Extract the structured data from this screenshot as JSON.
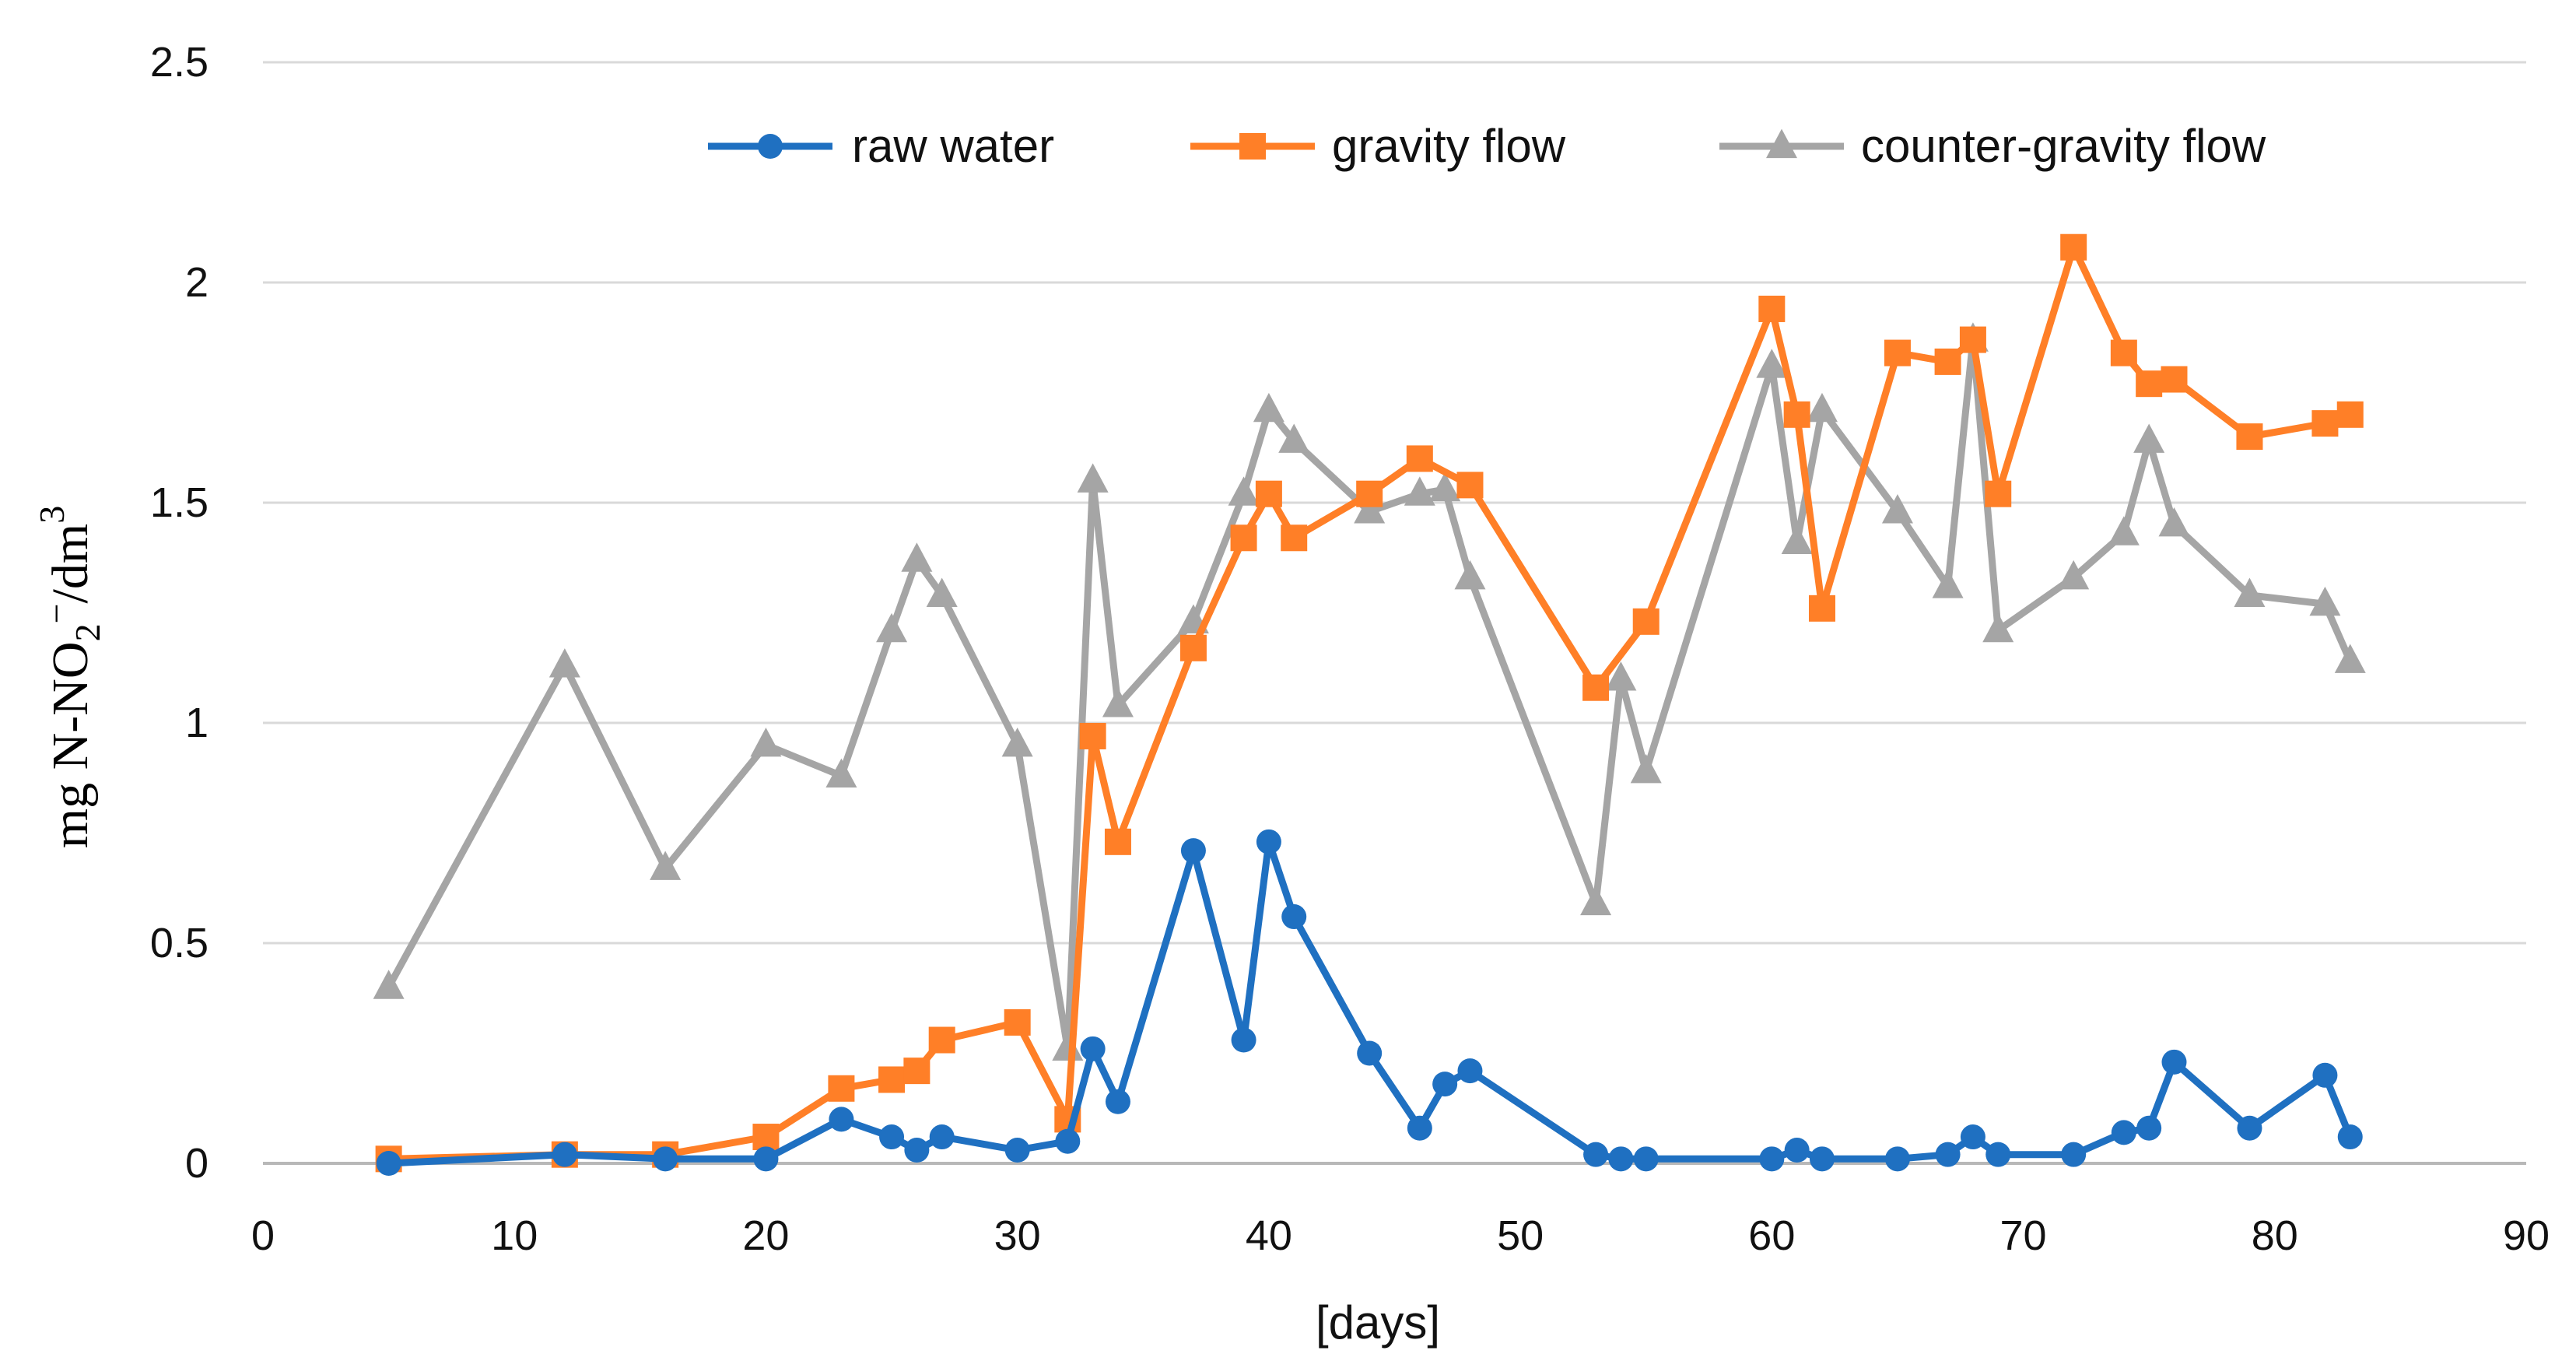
{
  "chart_data": {
    "type": "line",
    "title": "",
    "xlabel": "[days]",
    "ylabel": "mg N-NO2⁻/dm³",
    "ylabel_parts": {
      "prefix": "mg  N-NO",
      "sub": "2",
      "sup1": "−",
      "mid": "/dm",
      "sup2": "3"
    },
    "xlim": [
      0,
      90
    ],
    "ylim": [
      0,
      2.5
    ],
    "xticks": [
      0,
      10,
      20,
      30,
      40,
      50,
      60,
      70,
      80,
      90
    ],
    "yticks": [
      0,
      0.5,
      1,
      1.5,
      2,
      2.5
    ],
    "ytick_labels": [
      "0",
      "0.5",
      "1",
      "1.5",
      "2",
      "2.5"
    ],
    "grid": true,
    "legend_position": "top",
    "series": [
      {
        "name": "raw water",
        "color": "#1f70c1",
        "marker": "circle",
        "points": [
          [
            5,
            0.0
          ],
          [
            12,
            0.02
          ],
          [
            16,
            0.01
          ],
          [
            20,
            0.01
          ],
          [
            23,
            0.1
          ],
          [
            25,
            0.06
          ],
          [
            26,
            0.03
          ],
          [
            27,
            0.06
          ],
          [
            30,
            0.03
          ],
          [
            32,
            0.05
          ],
          [
            33,
            0.26
          ],
          [
            34,
            0.14
          ],
          [
            37,
            0.71
          ],
          [
            39,
            0.28
          ],
          [
            40,
            0.73
          ],
          [
            41,
            0.56
          ],
          [
            44,
            0.25
          ],
          [
            46,
            0.08
          ],
          [
            47,
            0.18
          ],
          [
            48,
            0.21
          ],
          [
            53,
            0.02
          ],
          [
            54,
            0.01
          ],
          [
            55,
            0.01
          ],
          [
            60,
            0.01
          ],
          [
            61,
            0.03
          ],
          [
            62,
            0.01
          ],
          [
            65,
            0.01
          ],
          [
            67,
            0.02
          ],
          [
            68,
            0.06
          ],
          [
            69,
            0.02
          ],
          [
            72,
            0.02
          ],
          [
            74,
            0.07
          ],
          [
            75,
            0.08
          ],
          [
            76,
            0.23
          ],
          [
            79,
            0.08
          ],
          [
            82,
            0.2
          ],
          [
            83,
            0.06
          ]
        ]
      },
      {
        "name": "gravity flow",
        "color": "#ff7f27",
        "marker": "square",
        "points": [
          [
            5,
            0.01
          ],
          [
            12,
            0.02
          ],
          [
            16,
            0.02
          ],
          [
            20,
            0.06
          ],
          [
            23,
            0.17
          ],
          [
            25,
            0.19
          ],
          [
            26,
            0.21
          ],
          [
            27,
            0.28
          ],
          [
            30,
            0.32
          ],
          [
            32,
            0.1
          ],
          [
            33,
            0.97
          ],
          [
            34,
            0.73
          ],
          [
            37,
            1.17
          ],
          [
            39,
            1.42
          ],
          [
            40,
            1.52
          ],
          [
            41,
            1.42
          ],
          [
            44,
            1.52
          ],
          [
            46,
            1.6
          ],
          [
            48,
            1.54
          ],
          [
            53,
            1.08
          ],
          [
            55,
            1.23
          ],
          [
            60,
            1.94
          ],
          [
            61,
            1.7
          ],
          [
            62,
            1.26
          ],
          [
            65,
            1.84
          ],
          [
            67,
            1.82
          ],
          [
            68,
            1.87
          ],
          [
            69,
            1.52
          ],
          [
            72,
            2.08
          ],
          [
            74,
            1.84
          ],
          [
            75,
            1.77
          ],
          [
            76,
            1.78
          ],
          [
            79,
            1.65
          ],
          [
            82,
            1.68
          ],
          [
            83,
            1.7
          ]
        ]
      },
      {
        "name": "counter-gravity flow",
        "color": "#a5a5a5",
        "marker": "triangle",
        "points": [
          [
            5,
            0.4
          ],
          [
            12,
            1.13
          ],
          [
            16,
            0.67
          ],
          [
            20,
            0.95
          ],
          [
            23,
            0.88
          ],
          [
            25,
            1.21
          ],
          [
            26,
            1.37
          ],
          [
            27,
            1.29
          ],
          [
            30,
            0.95
          ],
          [
            32,
            0.26
          ],
          [
            33,
            1.55
          ],
          [
            34,
            1.04
          ],
          [
            37,
            1.23
          ],
          [
            39,
            1.52
          ],
          [
            40,
            1.71
          ],
          [
            41,
            1.64
          ],
          [
            44,
            1.48
          ],
          [
            46,
            1.52
          ],
          [
            47,
            1.53
          ],
          [
            48,
            1.33
          ],
          [
            53,
            0.59
          ],
          [
            54,
            1.1
          ],
          [
            55,
            0.89
          ],
          [
            60,
            1.81
          ],
          [
            61,
            1.41
          ],
          [
            62,
            1.71
          ],
          [
            65,
            1.48
          ],
          [
            67,
            1.31
          ],
          [
            68,
            1.87
          ],
          [
            69,
            1.21
          ],
          [
            72,
            1.33
          ],
          [
            74,
            1.43
          ],
          [
            75,
            1.64
          ],
          [
            76,
            1.45
          ],
          [
            79,
            1.29
          ],
          [
            82,
            1.27
          ],
          [
            83,
            1.14
          ]
        ]
      }
    ]
  }
}
